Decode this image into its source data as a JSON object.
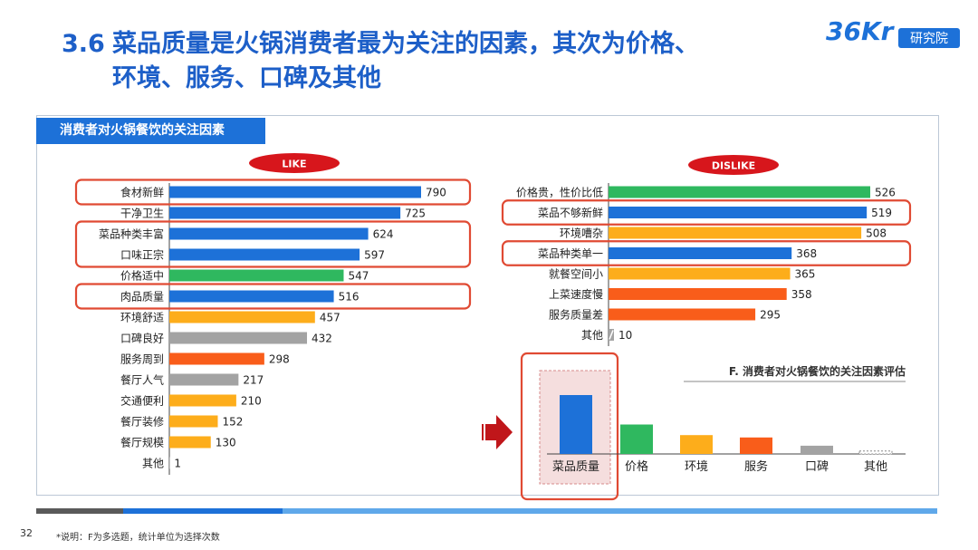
{
  "page": {
    "title_num": "3.6",
    "title_line1": "菜品质量是火锅消费者最为关注的因素，其次为价格、",
    "title_line2": "环境、服务、口碑及其他",
    "logo_text": "研究院",
    "logo_mark": "36Kr",
    "panel_header": "消费者对火锅餐饮的关注因素",
    "page_number": "32",
    "note": "*说明：F为多选题，统计单位为选择次数",
    "colors": {
      "blue": "#1d71d8",
      "green": "#2fb85f",
      "orange": "#fdad1b",
      "deep_orange": "#f95d1a",
      "gray": "#a3a3a3",
      "highlight": "#e04a33"
    }
  },
  "chart_data": [
    {
      "type": "bar",
      "orientation": "horizontal",
      "badge": "LIKE",
      "categories": [
        "食材新鲜",
        "干净卫生",
        "菜品种类丰富",
        "口味正宗",
        "价格适中",
        "肉品质量",
        "环境舒适",
        "口碑良好",
        "服务周到",
        "餐厅人气",
        "交通便利",
        "餐厅装修",
        "餐厅规模",
        "其他"
      ],
      "values": [
        790,
        725,
        624,
        597,
        547,
        516,
        457,
        432,
        298,
        217,
        210,
        152,
        130,
        1
      ],
      "colors": [
        "blue",
        "blue",
        "blue",
        "blue",
        "green",
        "blue",
        "orange",
        "gray",
        "deep_orange",
        "gray",
        "orange",
        "orange",
        "orange",
        "gray"
      ],
      "highlighted_groups": [
        [
          0
        ],
        [
          2,
          3
        ],
        [
          5
        ]
      ]
    },
    {
      "type": "bar",
      "orientation": "horizontal",
      "badge": "DISLIKE",
      "categories": [
        "价格贵，性价比低",
        "菜品不够新鲜",
        "环境嘈杂",
        "菜品种类单一",
        "就餐空间小",
        "上菜速度慢",
        "服务质量差",
        "其他"
      ],
      "values": [
        526,
        519,
        508,
        368,
        365,
        358,
        295,
        10
      ],
      "colors": [
        "green",
        "blue",
        "orange",
        "blue",
        "orange",
        "deep_orange",
        "deep_orange",
        "gray"
      ],
      "axis_break_on": [
        7
      ],
      "highlighted_groups": [
        [
          1
        ],
        [
          3
        ]
      ]
    },
    {
      "type": "bar",
      "orientation": "vertical",
      "title": "F. 消费者对火锅餐饮的关注因素评估",
      "categories": [
        "菜品质量",
        "价格",
        "环境",
        "服务",
        "口碑",
        "其他"
      ],
      "colors": [
        "blue",
        "green",
        "orange",
        "deep_orange",
        "gray",
        "gray"
      ],
      "relative_values": [
        1.0,
        0.5,
        0.32,
        0.28,
        0.14,
        0.05
      ],
      "highlighted": [
        0
      ]
    }
  ]
}
